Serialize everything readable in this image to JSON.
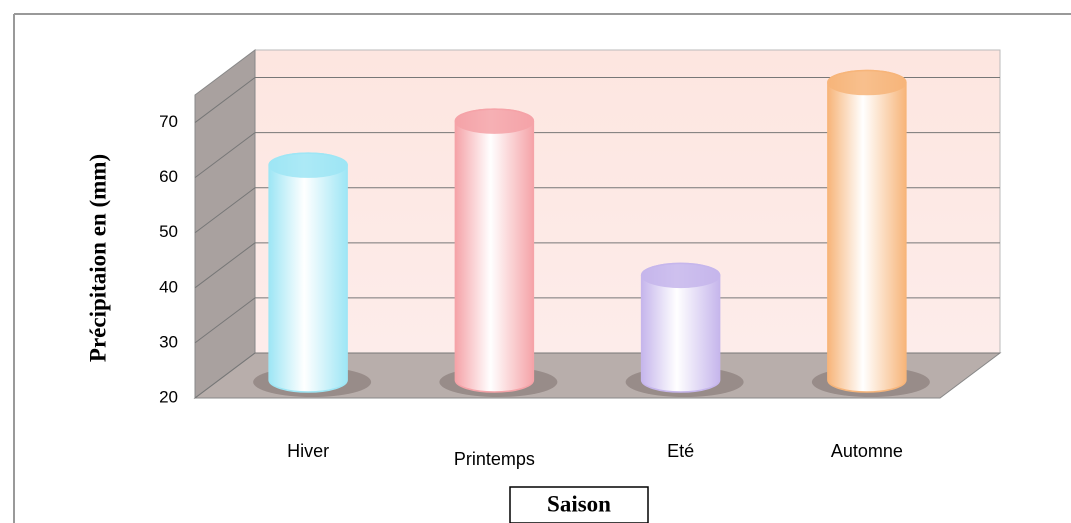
{
  "chart_data": {
    "type": "bar",
    "y_label": "Précipitaion en (mm)",
    "x_label": "Saison",
    "categories": [
      "Hiver",
      "Printemps",
      "Eté",
      "Automne"
    ],
    "values": [
      59,
      67,
      39,
      74
    ],
    "colors": [
      "#9ee6f5",
      "#f5a3a8",
      "#c6b6ec",
      "#f7b57a"
    ],
    "ylim": [
      20,
      75
    ],
    "yticks": [
      20,
      30,
      40,
      50,
      60,
      70
    ],
    "grid": true
  }
}
